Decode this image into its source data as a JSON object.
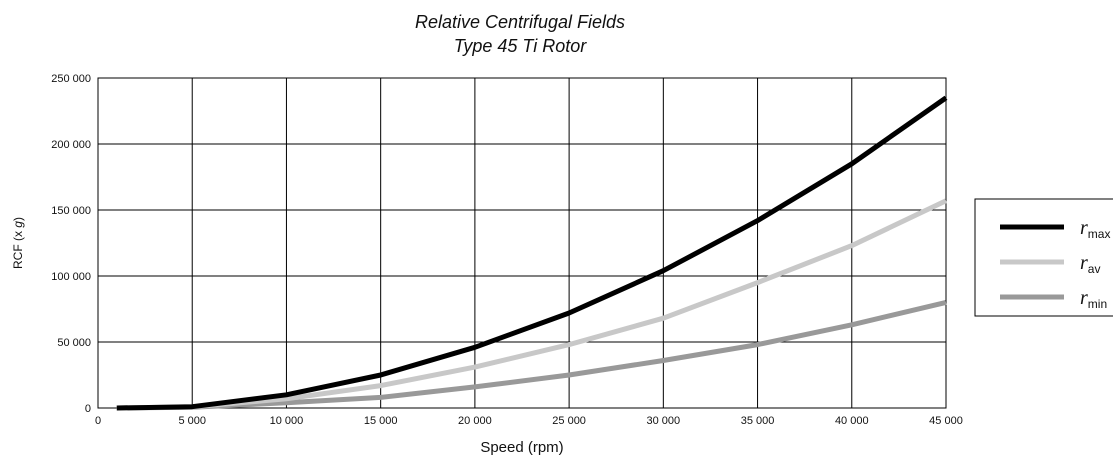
{
  "chart_data": {
    "type": "line",
    "title": "Relative Centrifugal Fields",
    "subtitle": "Type 45 Ti Rotor",
    "xlabel": "Speed (rpm)",
    "ylabel_main": "RCF (x ",
    "ylabel_italic": "g",
    "ylabel_end": ")",
    "xlim": [
      0,
      45000
    ],
    "ylim": [
      0,
      250000
    ],
    "x_ticks": [
      0,
      5000,
      10000,
      15000,
      20000,
      25000,
      30000,
      35000,
      40000,
      45000
    ],
    "x_tick_labels": [
      "0",
      "5 000",
      "10 000",
      "15 000",
      "20 000",
      "25 000",
      "30 000",
      "35 000",
      "40 000",
      "45 000"
    ],
    "y_ticks": [
      0,
      50000,
      100000,
      150000,
      200000,
      250000
    ],
    "y_tick_labels": [
      "0",
      "50 000",
      "100 000",
      "150 000",
      "200 000",
      "250 000"
    ],
    "grid": true,
    "legend_position": "right",
    "x": [
      1000,
      5000,
      10000,
      15000,
      20000,
      25000,
      30000,
      35000,
      40000,
      45000
    ],
    "series": [
      {
        "name": "r",
        "sub": "max",
        "color": "#000000",
        "values": [
          0,
          1000,
          10000,
          25000,
          46000,
          72000,
          104000,
          142000,
          185000,
          235000
        ]
      },
      {
        "name": "r",
        "sub": "av",
        "color": "#c8c8c8",
        "values": [
          0,
          800,
          7000,
          17000,
          31000,
          48000,
          68000,
          95000,
          123000,
          157000
        ]
      },
      {
        "name": "r",
        "sub": "min",
        "color": "#999999",
        "values": [
          0,
          500,
          4000,
          8000,
          16000,
          25000,
          36000,
          48000,
          63000,
          80000
        ]
      }
    ]
  }
}
